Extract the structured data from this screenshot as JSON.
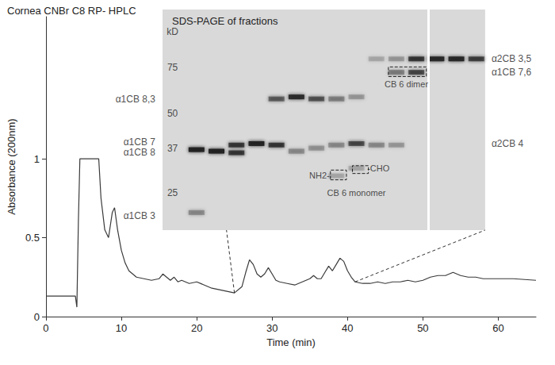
{
  "chart_data": [
    {
      "type": "line",
      "title": "Cornea CNBr C8 RP- HPLC",
      "x_label": "Time (min)",
      "y_label": "Absorbance (200nm)",
      "x": [
        0,
        3.9,
        4.1,
        4.3,
        4.5,
        7,
        7.3,
        7.8,
        8.3,
        8.8,
        9.1,
        9.5,
        10,
        10.5,
        11,
        12,
        13,
        14,
        15,
        15.5,
        16,
        16.5,
        17,
        17.5,
        18,
        19,
        20,
        21,
        22,
        23,
        24,
        25,
        26,
        26.5,
        27,
        27.5,
        28,
        28.5,
        29,
        29.5,
        30,
        30.5,
        31,
        32,
        33,
        34,
        35,
        35.5,
        36,
        36.5,
        37,
        37.5,
        38,
        38.5,
        39,
        39.5,
        40,
        40.5,
        41,
        42,
        43,
        44,
        45,
        46,
        47,
        48,
        49,
        50,
        51,
        52,
        53,
        54,
        55,
        56,
        57,
        58,
        60,
        62,
        65
      ],
      "values": [
        0.13,
        0.13,
        0.06,
        0.6,
        1.0,
        1.0,
        0.75,
        0.55,
        0.5,
        0.66,
        0.69,
        0.55,
        0.42,
        0.34,
        0.29,
        0.25,
        0.24,
        0.23,
        0.24,
        0.27,
        0.25,
        0.23,
        0.25,
        0.22,
        0.23,
        0.21,
        0.22,
        0.2,
        0.18,
        0.17,
        0.16,
        0.15,
        0.19,
        0.28,
        0.36,
        0.33,
        0.27,
        0.25,
        0.27,
        0.31,
        0.27,
        0.23,
        0.22,
        0.21,
        0.2,
        0.22,
        0.24,
        0.26,
        0.24,
        0.24,
        0.28,
        0.32,
        0.29,
        0.33,
        0.37,
        0.35,
        0.29,
        0.25,
        0.22,
        0.21,
        0.21,
        0.22,
        0.21,
        0.22,
        0.22,
        0.23,
        0.22,
        0.23,
        0.25,
        0.26,
        0.26,
        0.28,
        0.26,
        0.25,
        0.25,
        0.24,
        0.24,
        0.24,
        0.23
      ],
      "color": "#3a3a3a",
      "xlim": [
        0,
        65
      ],
      "xticks": [
        0,
        10,
        20,
        30,
        40,
        50,
        60
      ],
      "ylim": [
        0,
        1.9
      ],
      "yticks": [
        0,
        0.5,
        1
      ],
      "inset_time_range": [
        25,
        41
      ]
    },
    {
      "type": "gel",
      "title": "SDS-PAGE of fractions",
      "y_label": "kD",
      "log": "y",
      "xlim": [
        -3,
        16
      ],
      "ylim": [
        18,
        125
      ],
      "yticks": [
        25,
        37,
        50,
        75
      ],
      "color": "#1a1a1a",
      "bands": {
        "lane": [
          1,
          1,
          2,
          3,
          3,
          4,
          5,
          5,
          6,
          6,
          7,
          7,
          8,
          8,
          8,
          9,
          9,
          9,
          10,
          10,
          11,
          11,
          11,
          12,
          12,
          13,
          14,
          15
        ],
        "kD": [
          36.5,
          21,
          36,
          38,
          35.5,
          38.5,
          38,
          57,
          36,
          58,
          57,
          37,
          57,
          38,
          29,
          38.5,
          31,
          58,
          38,
          81,
          72,
          38,
          81,
          81,
          72,
          81,
          81,
          81
        ],
        "density": [
          0.9,
          0.3,
          0.9,
          0.7,
          0.7,
          0.9,
          0.7,
          0.5,
          0.3,
          0.8,
          0.55,
          0.25,
          0.35,
          0.3,
          0.15,
          0.6,
          0.15,
          0.2,
          0.3,
          0.15,
          0.35,
          0.2,
          0.2,
          0.7,
          0.6,
          0.85,
          0.85,
          0.65
        ]
      },
      "labels": [
        {
          "text": "α1CB 8,3",
          "kD": 57,
          "side": "left"
        },
        {
          "text": "α1CB 7",
          "kD": 39,
          "side": "left"
        },
        {
          "text": "α1CB 8",
          "kD": 35.7,
          "side": "left"
        },
        {
          "text": "α1CB 3",
          "kD": 20.4,
          "side": "left"
        },
        {
          "text": "α2CB 3,5",
          "kD": 81,
          "side": "right"
        },
        {
          "text": "α1CB 7,6",
          "kD": 72,
          "side": "right"
        },
        {
          "text": "α2CB 4",
          "kD": 38.6,
          "side": "right"
        }
      ],
      "boxes": [
        {
          "lane": [
            10.6,
            12.5
          ],
          "kD": [
            69.4,
            75.5
          ]
        },
        {
          "lane": [
            7.7,
            8.5
          ],
          "kD": [
            28,
            30.5
          ]
        },
        {
          "lane": [
            8.8,
            9.6
          ],
          "kD": [
            29.6,
            31.7
          ]
        }
      ],
      "annotations": [
        {
          "text": "CB 6 dimer",
          "lane": 11.5,
          "kD": 65
        },
        {
          "text": "NH2-",
          "lane": 7.15,
          "kD": 29.2
        },
        {
          "text": "-CHO",
          "lane": 10.1,
          "kD": 31
        },
        {
          "text": "CB 6 monomer",
          "lane": 9,
          "kD": 25
        }
      ]
    }
  ]
}
